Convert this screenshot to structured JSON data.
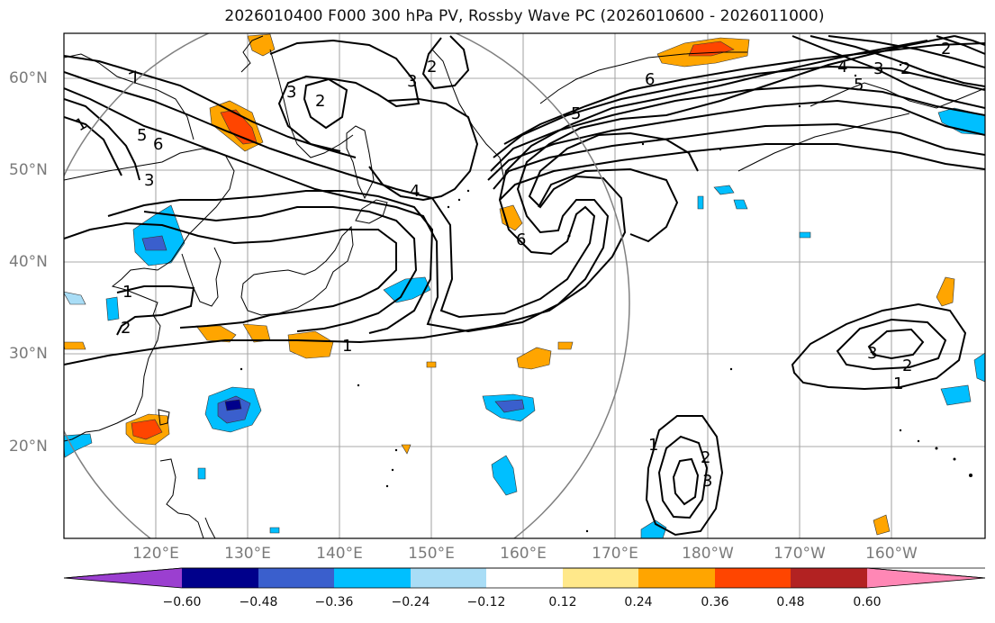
{
  "title": "2026010400 F000 300 hPa PV, Rossby Wave PC (2026010600 - 2026011000)",
  "latitude_labels": [
    "60°N",
    "50°N",
    "40°N",
    "30°N",
    "20°N"
  ],
  "longitude_labels": [
    "120°E",
    "130°E",
    "140°E",
    "150°E",
    "160°E",
    "170°E",
    "180°W",
    "170°W",
    "160°W"
  ],
  "contour_labels": [
    "7",
    "1",
    "5",
    "6",
    "3",
    "3",
    "2",
    "2",
    "3",
    "4",
    "5",
    "6",
    "6",
    "1",
    "1",
    "2",
    "3",
    "2",
    "1",
    "1",
    "2",
    "3",
    "4",
    "2",
    "3",
    "2",
    "5"
  ],
  "colorbar": {
    "tick_labels": [
      "−0.60",
      "−0.48",
      "−0.36",
      "−0.24",
      "−0.12",
      "0.12",
      "0.24",
      "0.36",
      "0.48",
      "0.60"
    ],
    "colors": [
      "#9b3fd0",
      "#00008b",
      "#3a5fcd",
      "#00bfff",
      "#a9ddf6",
      "#ffffff",
      "#ffe88a",
      "#ffa500",
      "#ff4500",
      "#b22222",
      "#ff87b5"
    ]
  }
}
